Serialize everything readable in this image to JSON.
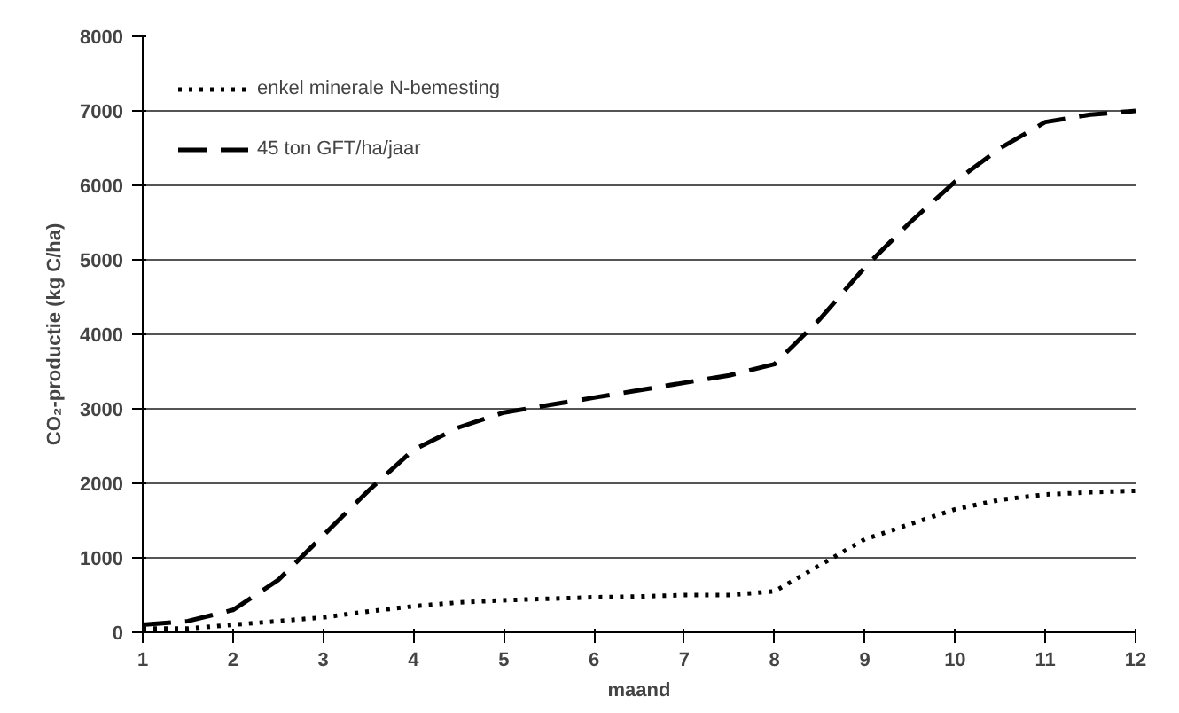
{
  "chart_data": {
    "type": "line",
    "xlabel": "maand",
    "ylabel": "CO₂-productie (kg C/ha)",
    "x": [
      1,
      1.5,
      2,
      2.5,
      3,
      3.5,
      4,
      4.5,
      5,
      5.5,
      6,
      6.5,
      7,
      7.5,
      8,
      8.5,
      9,
      9.5,
      10,
      10.5,
      11,
      11.5,
      12
    ],
    "series": [
      {
        "name": "enkel minerale N-bemesting",
        "color": "#000000",
        "line_style": "dotted",
        "values": [
          50,
          50,
          100,
          150,
          200,
          280,
          350,
          400,
          430,
          450,
          470,
          480,
          500,
          500,
          550,
          900,
          1250,
          1450,
          1650,
          1780,
          1850,
          1880,
          1900
        ]
      },
      {
        "name": "45 ton GFT/ha/jaar",
        "color": "#000000",
        "line_style": "dashed",
        "values": [
          100,
          150,
          300,
          700,
          1300,
          1900,
          2450,
          2750,
          2950,
          3050,
          3150,
          3250,
          3350,
          3450,
          3600,
          4200,
          4900,
          5500,
          6050,
          6500,
          6850,
          6950,
          7000
        ]
      }
    ],
    "xlim": [
      1,
      12
    ],
    "xticks": [
      1,
      2,
      3,
      4,
      5,
      6,
      7,
      8,
      9,
      10,
      11,
      12
    ],
    "ylim": [
      0,
      8000
    ],
    "yticks": [
      0,
      1000,
      2000,
      3000,
      4000,
      5000,
      6000,
      7000,
      8000
    ],
    "grid": "y",
    "legend": "top left"
  }
}
